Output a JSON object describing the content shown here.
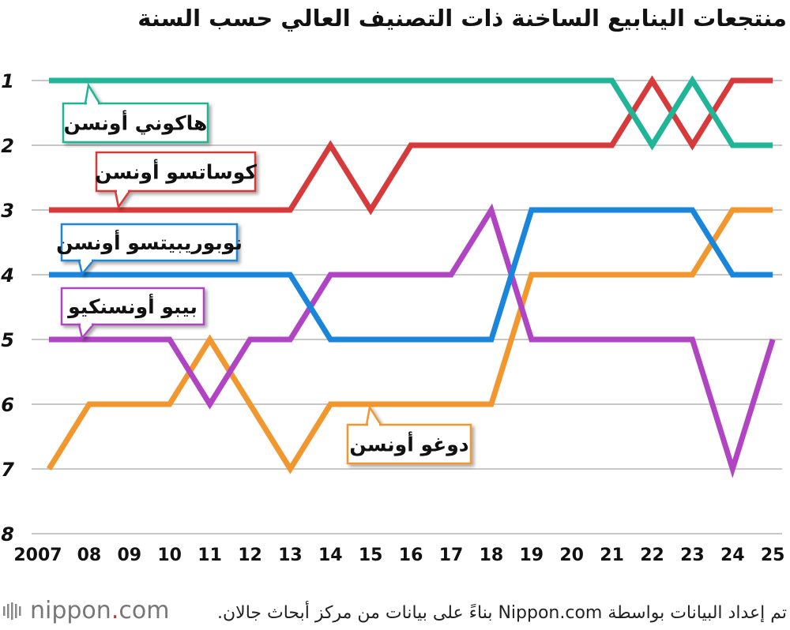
{
  "title": "منتجعات الينابيع الساخنة ذات التصنيف العالي حسب السنة",
  "source_note": "تم إعداد البيانات بواسطة Nippon.com بناءً على بيانات من مركز أبحاث جالان.",
  "logo": {
    "name": "nippon",
    "dot": ".",
    "domain": "com"
  },
  "chart_data": {
    "type": "line",
    "title": "منتجعات الينابيع الساخنة ذات التصنيف العالي حسب السنة",
    "xlabel": "",
    "ylabel": "",
    "x": [
      "2007",
      "08",
      "09",
      "10",
      "11",
      "12",
      "13",
      "14",
      "15",
      "16",
      "17",
      "18",
      "19",
      "20",
      "21",
      "22",
      "23",
      "24",
      "25"
    ],
    "ylim": [
      1,
      8
    ],
    "yticks": [
      "1",
      "2",
      "3",
      "4",
      "5",
      "6",
      "7",
      "8"
    ],
    "y_inverted": true,
    "grid": true,
    "series": [
      {
        "name": "هاكوني أونسن",
        "color": "#1fb596",
        "values": [
          1,
          1,
          1,
          1,
          1,
          1,
          1,
          1,
          1,
          1,
          1,
          1,
          1,
          1,
          1,
          2,
          1,
          2,
          2
        ]
      },
      {
        "name": "كوساتسو أونسن",
        "color": "#d63a3a",
        "values": [
          3,
          3,
          3,
          3,
          3,
          3,
          3,
          2,
          3,
          2,
          2,
          2,
          2,
          2,
          2,
          1,
          2,
          1,
          1
        ]
      },
      {
        "name": "نوبوريبيتسو أونسن",
        "color": "#1a86db",
        "values": [
          4,
          4,
          4,
          4,
          4,
          4,
          4,
          5,
          5,
          5,
          5,
          5,
          3,
          3,
          3,
          3,
          3,
          4,
          4
        ]
      },
      {
        "name": "بيبو أونسنكيو",
        "color": "#b044c2",
        "values": [
          5,
          5,
          5,
          5,
          6,
          5,
          5,
          4,
          4,
          4,
          4,
          3,
          5,
          5,
          5,
          5,
          5,
          7,
          5
        ]
      },
      {
        "name": "دوغو أونسن",
        "color": "#f2962e",
        "values": [
          7,
          6,
          6,
          6,
          5,
          6,
          7,
          6,
          6,
          6,
          6,
          6,
          4,
          4,
          4,
          4,
          4,
          3,
          3
        ]
      }
    ]
  }
}
